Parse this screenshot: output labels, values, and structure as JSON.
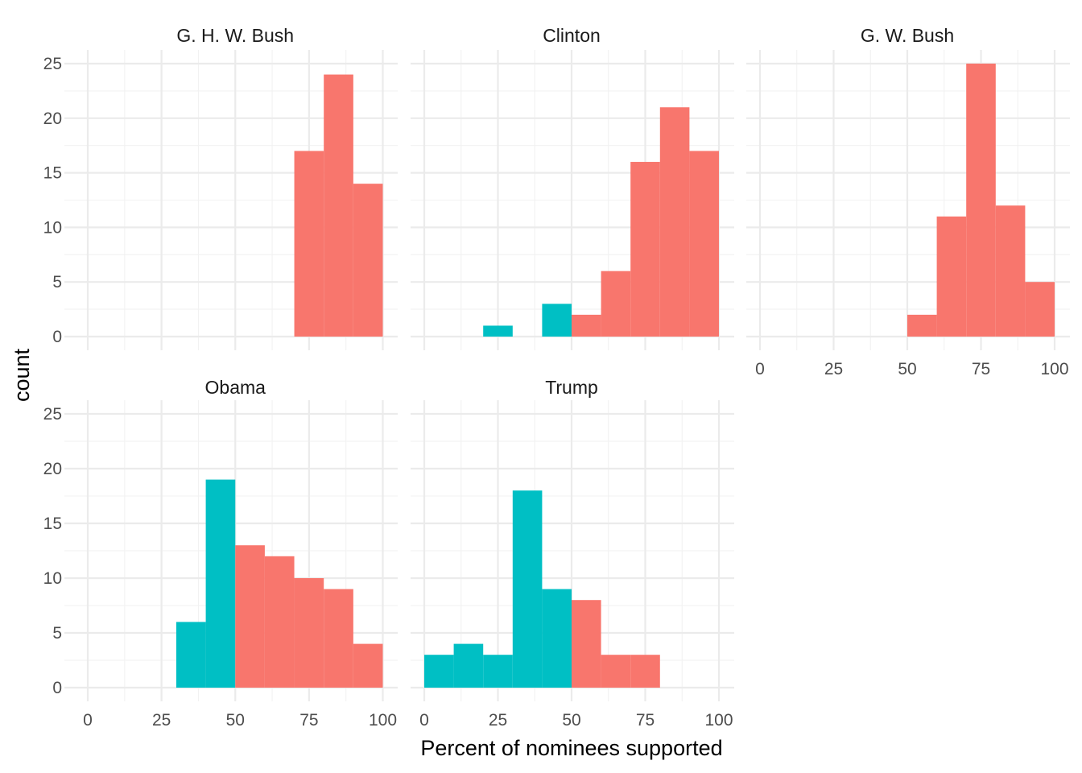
{
  "chart_data": {
    "type": "bar",
    "subtype": "faceted-histogram",
    "title": "",
    "xlabel": "Percent of nominees supported",
    "ylabel": "count",
    "xlim": [
      0,
      100
    ],
    "ylim": [
      0,
      25
    ],
    "x_ticks": [
      0,
      25,
      50,
      75,
      100
    ],
    "y_ticks": [
      0,
      5,
      10,
      15,
      20,
      25
    ],
    "bin_width": 10,
    "grid": true,
    "legend": "none",
    "colors": {
      "below_50": "#00BFC4",
      "at_or_above_50": "#F8766D"
    },
    "facets": [
      {
        "label": "G. H. W. Bush",
        "bins": [
          {
            "x0": 70,
            "x1": 80,
            "count": 17,
            "group": "at_or_above_50"
          },
          {
            "x0": 80,
            "x1": 90,
            "count": 24,
            "group": "at_or_above_50"
          },
          {
            "x0": 90,
            "x1": 100,
            "count": 14,
            "group": "at_or_above_50"
          }
        ]
      },
      {
        "label": "Clinton",
        "bins": [
          {
            "x0": 20,
            "x1": 30,
            "count": 1,
            "group": "below_50"
          },
          {
            "x0": 40,
            "x1": 50,
            "count": 3,
            "group": "below_50"
          },
          {
            "x0": 50,
            "x1": 60,
            "count": 2,
            "group": "at_or_above_50"
          },
          {
            "x0": 60,
            "x1": 70,
            "count": 6,
            "group": "at_or_above_50"
          },
          {
            "x0": 70,
            "x1": 80,
            "count": 16,
            "group": "at_or_above_50"
          },
          {
            "x0": 80,
            "x1": 90,
            "count": 21,
            "group": "at_or_above_50"
          },
          {
            "x0": 90,
            "x1": 100,
            "count": 17,
            "group": "at_or_above_50"
          }
        ]
      },
      {
        "label": "G. W. Bush",
        "bins": [
          {
            "x0": 50,
            "x1": 60,
            "count": 2,
            "group": "at_or_above_50"
          },
          {
            "x0": 60,
            "x1": 70,
            "count": 11,
            "group": "at_or_above_50"
          },
          {
            "x0": 70,
            "x1": 80,
            "count": 25,
            "group": "at_or_above_50"
          },
          {
            "x0": 80,
            "x1": 90,
            "count": 12,
            "group": "at_or_above_50"
          },
          {
            "x0": 90,
            "x1": 100,
            "count": 5,
            "group": "at_or_above_50"
          }
        ]
      },
      {
        "label": "Obama",
        "bins": [
          {
            "x0": 30,
            "x1": 40,
            "count": 6,
            "group": "below_50"
          },
          {
            "x0": 40,
            "x1": 50,
            "count": 19,
            "group": "below_50"
          },
          {
            "x0": 50,
            "x1": 60,
            "count": 13,
            "group": "at_or_above_50"
          },
          {
            "x0": 60,
            "x1": 70,
            "count": 12,
            "group": "at_or_above_50"
          },
          {
            "x0": 70,
            "x1": 80,
            "count": 10,
            "group": "at_or_above_50"
          },
          {
            "x0": 80,
            "x1": 90,
            "count": 9,
            "group": "at_or_above_50"
          },
          {
            "x0": 90,
            "x1": 100,
            "count": 4,
            "group": "at_or_above_50"
          }
        ]
      },
      {
        "label": "Trump",
        "bins": [
          {
            "x0": 0,
            "x1": 10,
            "count": 3,
            "group": "below_50"
          },
          {
            "x0": 10,
            "x1": 20,
            "count": 4,
            "group": "below_50"
          },
          {
            "x0": 20,
            "x1": 30,
            "count": 3,
            "group": "below_50"
          },
          {
            "x0": 30,
            "x1": 40,
            "count": 18,
            "group": "below_50"
          },
          {
            "x0": 40,
            "x1": 50,
            "count": 9,
            "group": "below_50"
          },
          {
            "x0": 50,
            "x1": 60,
            "count": 8,
            "group": "at_or_above_50"
          },
          {
            "x0": 60,
            "x1": 70,
            "count": 3,
            "group": "at_or_above_50"
          },
          {
            "x0": 70,
            "x1": 80,
            "count": 3,
            "group": "at_or_above_50"
          }
        ]
      }
    ]
  }
}
